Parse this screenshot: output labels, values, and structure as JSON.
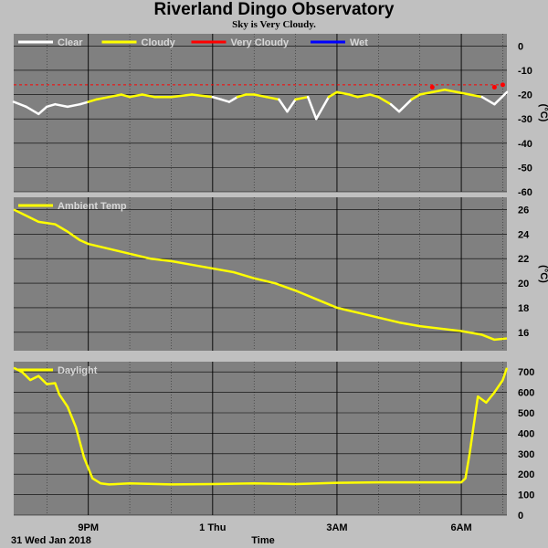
{
  "header": {
    "title": "Riverland Dingo Observatory",
    "subtitle": "Sky is Very Cloudy."
  },
  "footer": {
    "date_label": "31 Wed Jan 2018",
    "time_label": "Time"
  },
  "colors": {
    "background": "#c0c0c0",
    "plot_bg": "#808080",
    "grid": "#000000",
    "clear": "#ffffff",
    "cloudy": "#ffff00",
    "very_cloudy": "#ff0000",
    "wet": "#0000ff"
  },
  "chart_data": [
    {
      "type": "line",
      "name": "sky",
      "unit": "(°C)",
      "ylim": [
        -60,
        5
      ],
      "yticks": [
        0,
        -10,
        -20,
        -30,
        -40,
        -50,
        -60
      ],
      "xlim": [
        19.2,
        31.1
      ],
      "threshold": -16,
      "legend": [
        {
          "label": "Clear",
          "color": "#ffffff"
        },
        {
          "label": "Cloudy",
          "color": "#ffff00"
        },
        {
          "label": "Very Cloudy",
          "color": "#ff0000"
        },
        {
          "label": "Wet",
          "color": "#0000ff"
        }
      ],
      "series": [
        {
          "x": [
            19.2,
            19.5,
            19.8,
            20.0,
            20.2,
            20.5,
            20.8,
            21.0,
            21.2,
            21.5,
            21.8,
            22.0,
            22.3,
            22.6,
            23.0,
            23.5,
            24.0,
            24.2,
            24.4,
            24.6,
            24.8,
            25.0,
            25.3,
            25.6,
            25.8,
            26.0,
            26.3,
            26.5,
            26.8,
            27.0,
            27.3,
            27.5,
            27.8,
            28.0,
            28.3,
            28.5,
            28.8,
            29.0,
            29.3,
            29.6,
            29.9,
            30.2,
            30.5,
            30.8,
            31.1
          ],
          "y": [
            -23,
            -25,
            -28,
            -25,
            -24,
            -25,
            -24,
            -23,
            -22,
            -21,
            -20,
            -21,
            -20,
            -21,
            -21,
            -20,
            -21,
            -22,
            -23,
            -21,
            -20,
            -20,
            -21,
            -22,
            -27,
            -22,
            -21,
            -30,
            -21,
            -19,
            -20,
            -21,
            -20,
            -21,
            -24,
            -27,
            -22,
            -20,
            -19,
            -18,
            -19,
            -20,
            -21,
            -24,
            -19
          ],
          "colors": [
            "#ffffff",
            "#ffffff",
            "#ffffff",
            "#ffffff",
            "#ffffff",
            "#ffffff",
            "#ffffff",
            "#ffff00",
            "#ffff00",
            "#ffff00",
            "#ffff00",
            "#ffff00",
            "#ffff00",
            "#ffff00",
            "#ffff00",
            "#ffff00",
            "#ffffff",
            "#ffffff",
            "#ffffff",
            "#ffff00",
            "#ffff00",
            "#ffff00",
            "#ffff00",
            "#ffffff",
            "#ffffff",
            "#ffff00",
            "#ffffff",
            "#ffffff",
            "#ffff00",
            "#ffff00",
            "#ffff00",
            "#ffff00",
            "#ffff00",
            "#ffff00",
            "#ffffff",
            "#ffffff",
            "#ffff00",
            "#ffff00",
            "#ffff00",
            "#ffff00",
            "#ffff00",
            "#ffff00",
            "#ffffff",
            "#ffffff",
            "#ffff00"
          ]
        },
        {
          "name": "Very Cloudy",
          "x": [
            29.3,
            30.8,
            31.0
          ],
          "y": [
            -17,
            -17,
            -16
          ],
          "color": "#ff0000",
          "markers_only": true
        }
      ]
    },
    {
      "type": "line",
      "name": "ambient",
      "unit": "(°C)",
      "ylim": [
        14.5,
        27
      ],
      "yticks": [
        26,
        24,
        22,
        20,
        18,
        16
      ],
      "xlim": [
        19.2,
        31.1
      ],
      "legend": [
        {
          "label": "Ambient Temp",
          "color": "#ffff00"
        }
      ],
      "series": [
        {
          "name": "Ambient Temp",
          "color": "#ffff00",
          "x": [
            19.2,
            19.5,
            19.8,
            20.2,
            20.5,
            20.8,
            21.0,
            21.5,
            22.0,
            22.5,
            23.0,
            23.5,
            24.0,
            24.5,
            25.0,
            25.5,
            26.0,
            26.5,
            27.0,
            27.5,
            28.0,
            28.5,
            29.0,
            29.5,
            30.0,
            30.5,
            30.8,
            31.1
          ],
          "y": [
            26.0,
            25.5,
            25.0,
            24.8,
            24.2,
            23.5,
            23.2,
            22.8,
            22.4,
            22.0,
            21.8,
            21.5,
            21.2,
            20.9,
            20.4,
            20.0,
            19.4,
            18.7,
            18.0,
            17.6,
            17.2,
            16.8,
            16.5,
            16.3,
            16.1,
            15.8,
            15.4,
            15.5
          ]
        }
      ]
    },
    {
      "type": "line",
      "name": "daylight",
      "unit": "",
      "ylim": [
        0,
        750
      ],
      "yticks": [
        700,
        600,
        500,
        400,
        300,
        200,
        100,
        0
      ],
      "xlim": [
        19.2,
        31.1
      ],
      "legend": [
        {
          "label": "Daylight",
          "color": "#ffff00"
        }
      ],
      "series": [
        {
          "name": "Daylight",
          "color": "#ffff00",
          "x": [
            19.2,
            19.4,
            19.6,
            19.8,
            20.0,
            20.2,
            20.3,
            20.5,
            20.7,
            20.9,
            21.1,
            21.3,
            21.5,
            22,
            23,
            24,
            25,
            26,
            27,
            28,
            29,
            30,
            30.0,
            30.1,
            30.2,
            30.4,
            30.6,
            30.8,
            31.0,
            31.1
          ],
          "y": [
            720,
            700,
            660,
            680,
            640,
            645,
            590,
            530,
            430,
            280,
            180,
            155,
            150,
            155,
            150,
            152,
            155,
            152,
            158,
            160,
            160,
            160,
            160,
            180,
            300,
            580,
            550,
            600,
            660,
            720
          ]
        }
      ]
    }
  ],
  "xaxis": {
    "ticks": [
      {
        "x": 21,
        "label": "9PM"
      },
      {
        "x": 24,
        "label": "1 Thu"
      },
      {
        "x": 27,
        "label": "3AM"
      },
      {
        "x": 30,
        "label": "6AM"
      }
    ],
    "minor": [
      20,
      22,
      23,
      25,
      26,
      28,
      29,
      31
    ]
  }
}
